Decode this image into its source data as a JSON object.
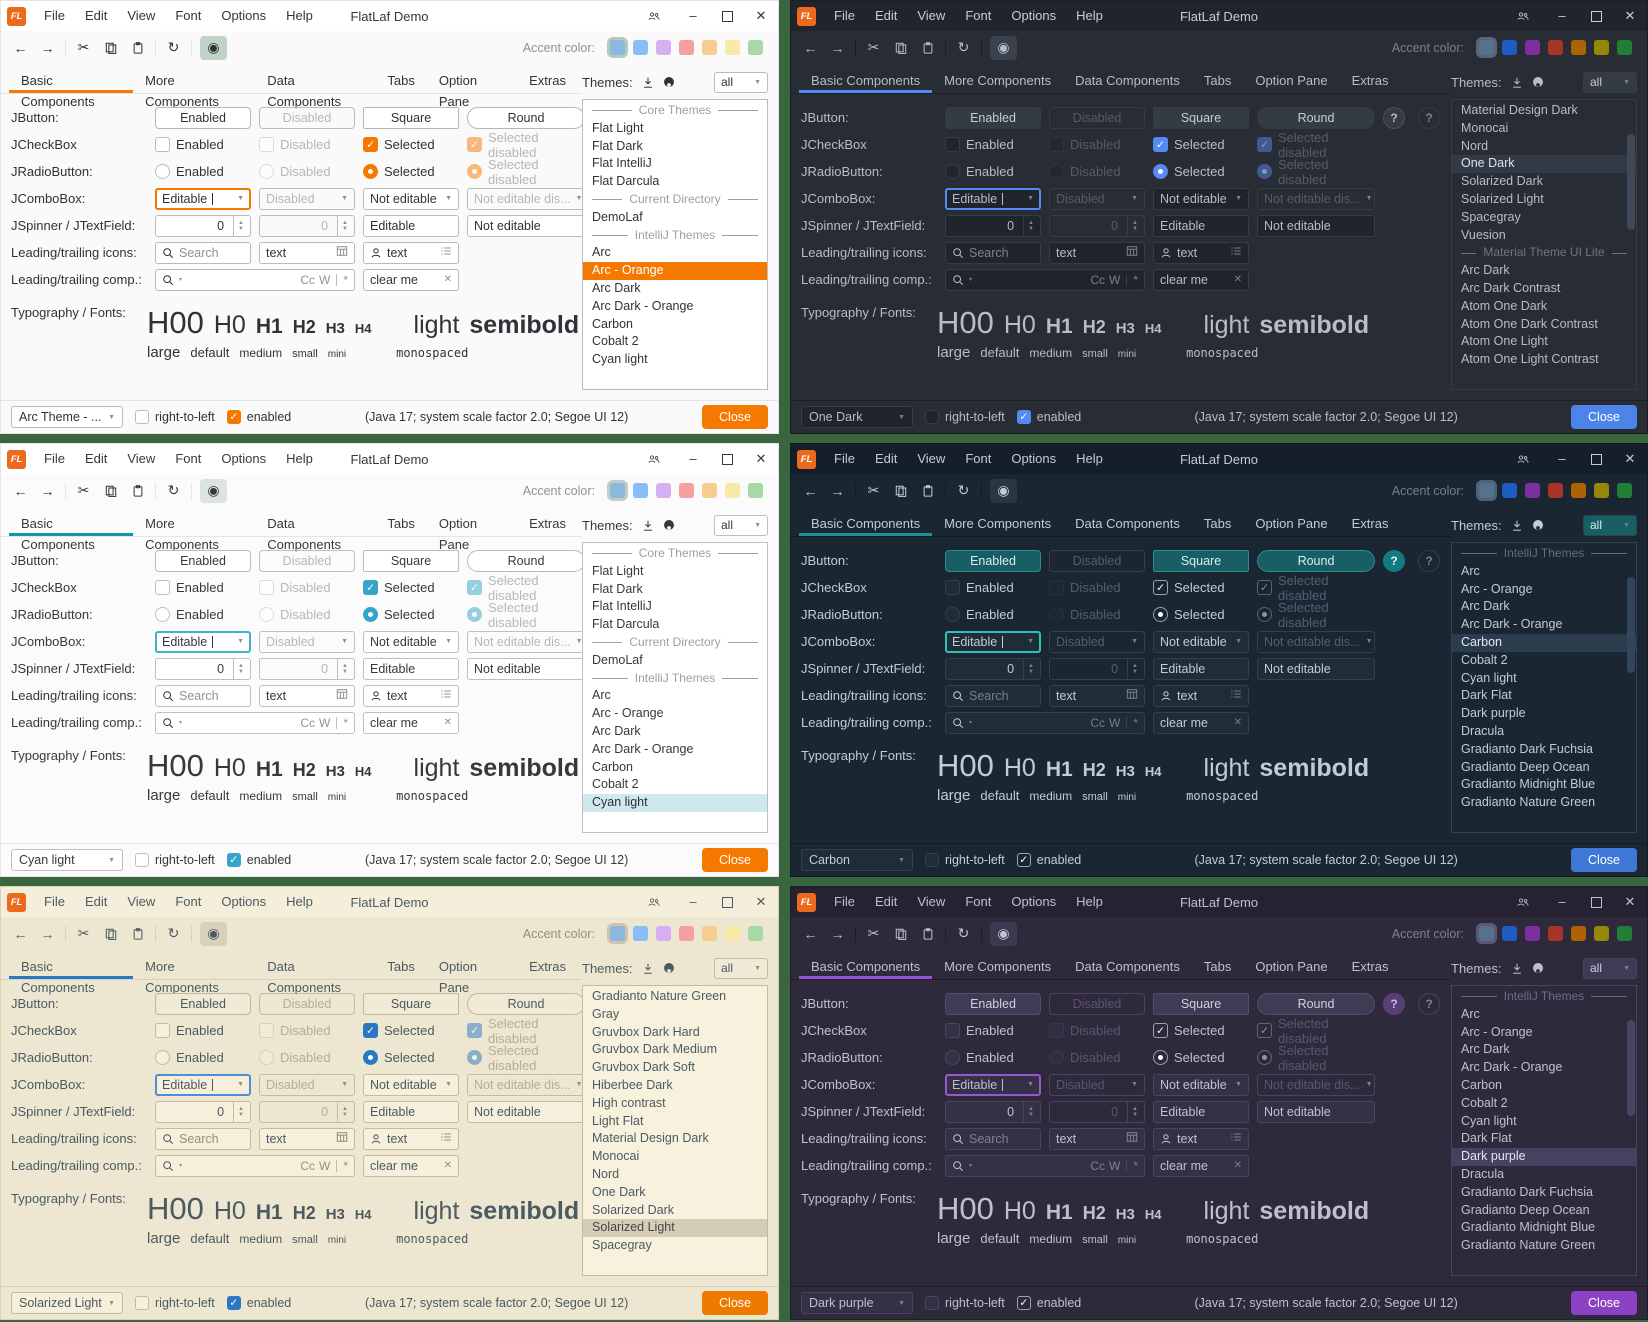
{
  "desktop": {
    "background": "#3a663f"
  },
  "shared": {
    "logo": "FL",
    "title": "FlatLaf Demo",
    "menu": [
      "File",
      "Edit",
      "View",
      "Font",
      "Options",
      "Help"
    ],
    "accent_color_label": "Accent color:",
    "tabs": [
      "Basic Components",
      "More Components",
      "Data Components",
      "Tabs",
      "Option Pane",
      "Extras"
    ],
    "themes_label": "Themes:",
    "filter_value": "all",
    "accent_swatches_light": [
      "#8db8dd",
      "#88bdf7",
      "#d7aef2",
      "#f5a0a0",
      "#f6cd8e",
      "#f7e9a6",
      "#a6d9a6"
    ],
    "accent_swatches_dark": [
      "#54718d",
      "#1d5cc2",
      "#7b2fa0",
      "#a83427",
      "#ad6204",
      "#96870a",
      "#217e35"
    ],
    "icons": {
      "back": "←",
      "forward": "→",
      "cut": "✂",
      "refresh": "↻",
      "eye": "◉",
      "combo_arrow": "▼",
      "spinner_up": "▲",
      "spinner_down": "▼",
      "check": "✓",
      "minimize": "–",
      "close_window": "✕",
      "clear_x": "✕",
      "star": "*",
      "bar_sep": "|",
      "search_drop": "▾"
    },
    "rows": {
      "jbutton": {
        "label": "JButton:",
        "enabled": "Enabled",
        "disabled": "Disabled",
        "square": "Square",
        "round": "Round",
        "help": "?"
      },
      "jcheckbox": {
        "label": "JCheckBox",
        "enabled": "Enabled",
        "disabled": "Disabled",
        "selected": "Selected",
        "selected_disabled": "Selected disabled"
      },
      "jradiobutton": {
        "label": "JRadioButton:",
        "enabled": "Enabled",
        "disabled": "Disabled",
        "selected": "Selected",
        "selected_disabled": "Selected disabled"
      },
      "jcombobox": {
        "label": "JComboBox:",
        "editable": "Editable",
        "disabled": "Disabled",
        "not_editable": "Not editable",
        "not_editable_disabled": "Not editable dis..."
      },
      "jspinner": {
        "label": "JSpinner / JTextField:",
        "value": "0",
        "disabled_value": "0",
        "editable": "Editable",
        "not_editable": "Not editable"
      },
      "leading_icons": {
        "label": "Leading/trailing icons:",
        "search_placeholder": "Search",
        "text1": "text",
        "text2": "text"
      },
      "leading_comps": {
        "label": "Leading/trailing comp.:",
        "cc": "Cc",
        "w": "W",
        "clear": "clear me"
      },
      "typography": {
        "label": "Typography / Fonts:",
        "h00": "H00",
        "h0": "H0",
        "h1": "H1",
        "h2": "H2",
        "h3": "H3",
        "h4": "H4",
        "light": "light",
        "semibold": "semibold",
        "large": "large",
        "default": "default",
        "medium": "medium",
        "small": "small",
        "mini": "mini",
        "monospaced": "monospaced"
      }
    },
    "statusbar": {
      "rtl": "right-to-left",
      "enabled": "enabled",
      "info": "(Java 17;  system scale factor 2.0; Segoe UI 12)",
      "close": "Close"
    }
  },
  "windows": [
    {
      "name": "arc-orange",
      "mode": "light",
      "selector_value": "Arc Theme - ...",
      "theme_list": [
        {
          "type": "sep",
          "label": "Core Themes"
        },
        {
          "label": "Flat Light"
        },
        {
          "label": "Flat Dark"
        },
        {
          "label": "Flat IntelliJ"
        },
        {
          "label": "Flat Darcula"
        },
        {
          "type": "sep",
          "label": "Current Directory"
        },
        {
          "label": "DemoLaf"
        },
        {
          "type": "sep",
          "label": "IntelliJ Themes"
        },
        {
          "label": "Arc"
        },
        {
          "label": "Arc - Orange",
          "selected": true
        },
        {
          "label": "Arc Dark"
        },
        {
          "label": "Arc Dark - Orange"
        },
        {
          "label": "Carbon"
        },
        {
          "label": "Cobalt 2"
        },
        {
          "label": "Cyan light"
        }
      ],
      "colors": {
        "bg": "#fafafa",
        "titlebar": "#ffffff",
        "titleText": "#333639",
        "text": "#2f3337",
        "muted": "#8e9294",
        "disabled": "#b4b7ba",
        "field": "#ffffff",
        "fieldBorder": "#b9bcbe",
        "btn": "#ffffff",
        "btnBorder": "#b4b7ba",
        "btnText": "#2f3337",
        "accent": "#f57900",
        "focus": "#f57900",
        "checkFill": "#f57900",
        "close": "#f57900",
        "listBg": "#ffffff",
        "listSel": "#f57900",
        "listSelText": "#ffffff",
        "toggleBg": "#bfd2c6",
        "swatchSel": "#b5c9bd",
        "divider": "#e2e4e5",
        "sepText": "#9aa0a3",
        "helpBg": "#ffffff",
        "helpFg": "#2c7fd6",
        "helpBorder": "#7eb3e8",
        "scrollThumb": ""
      }
    },
    {
      "name": "one-dark",
      "mode": "dark",
      "selector_value": "One Dark",
      "theme_list": [
        {
          "label": "Material Design Dark"
        },
        {
          "label": "Monocai"
        },
        {
          "label": "Nord"
        },
        {
          "label": "One Dark",
          "selected": true
        },
        {
          "label": "Solarized Dark"
        },
        {
          "label": "Solarized Light"
        },
        {
          "label": "Spacegray"
        },
        {
          "label": "Vuesion"
        },
        {
          "type": "sep",
          "label": "Material Theme UI Lite"
        },
        {
          "label": "Arc Dark"
        },
        {
          "label": "Arc Dark Contrast"
        },
        {
          "label": "Atom One Dark"
        },
        {
          "label": "Atom One Dark Contrast"
        },
        {
          "label": "Atom One Light"
        },
        {
          "label": "Atom One Light Contrast"
        }
      ],
      "colors": {
        "bg": "#282c34",
        "titlebar": "#21252b",
        "titleText": "#c8cdd5",
        "text": "#b6bdc9",
        "muted": "#7a818d",
        "disabled": "#555c68",
        "field": "#20242b",
        "fieldBorder": "#363c46",
        "btn": "#353b45",
        "btnBorder": "#353b45",
        "btnText": "#c8cdd5",
        "accent": "#568af2",
        "focus": "#568af2",
        "checkFill": "#568af2",
        "close": "#4d84ea",
        "listBg": "#282c34",
        "listSel": "#323a46",
        "listSelText": "#dfe3ea",
        "toggleBg": "#3b424e",
        "swatchSel": "#5a6575",
        "divider": "#1b1e23",
        "sepText": "#6f7682",
        "helpBg": "#353b45",
        "helpFg": "#b6bdc9",
        "helpBorder": "#4a515d",
        "scrollThumb": "#3f4857"
      }
    },
    {
      "name": "cyan-light",
      "mode": "light",
      "selector_value": "Cyan light",
      "theme_list": [
        {
          "type": "sep",
          "label": "Core Themes"
        },
        {
          "label": "Flat Light"
        },
        {
          "label": "Flat Dark"
        },
        {
          "label": "Flat IntelliJ"
        },
        {
          "label": "Flat Darcula"
        },
        {
          "type": "sep",
          "label": "Current Directory"
        },
        {
          "label": "DemoLaf"
        },
        {
          "type": "sep",
          "label": "IntelliJ Themes"
        },
        {
          "label": "Arc"
        },
        {
          "label": "Arc - Orange"
        },
        {
          "label": "Arc Dark"
        },
        {
          "label": "Arc Dark - Orange"
        },
        {
          "label": "Carbon"
        },
        {
          "label": "Cobalt 2"
        },
        {
          "label": "Cyan light",
          "selected": true
        }
      ],
      "colors": {
        "bg": "#fbfbfb",
        "titlebar": "#ffffff",
        "titleText": "#36393c",
        "text": "#36393c",
        "muted": "#909396",
        "disabled": "#b6b8ba",
        "field": "#ffffff",
        "fieldBorder": "#bdbfc1",
        "btn": "#ffffff",
        "btnBorder": "#b8babc",
        "btnText": "#36393c",
        "accent": "#0f9aa8",
        "focus": "#3fb3c8",
        "checkFill": "#34a5c8",
        "close": "#f57900",
        "listBg": "#ffffff",
        "listSel": "#cfe9ee",
        "listSelText": "#2c3033",
        "toggleBg": "#dde3e0",
        "swatchSel": "#c3cdc8",
        "divider": "#e4e5e6",
        "sepText": "#9aa0a3",
        "helpBg": "#ffffff",
        "helpFg": "#2c7fd6",
        "helpBorder": "#7eb3e8",
        "scrollThumb": ""
      }
    },
    {
      "name": "carbon",
      "mode": "dark",
      "selector_value": "Carbon",
      "theme_list": [
        {
          "type": "sep",
          "label": "IntelliJ Themes"
        },
        {
          "label": "Arc"
        },
        {
          "label": "Arc - Orange"
        },
        {
          "label": "Arc Dark"
        },
        {
          "label": "Arc Dark - Orange"
        },
        {
          "label": "Carbon",
          "selected": true
        },
        {
          "label": "Cobalt 2"
        },
        {
          "label": "Cyan light"
        },
        {
          "label": "Dark Flat"
        },
        {
          "label": "Dark purple"
        },
        {
          "label": "Dracula"
        },
        {
          "label": "Gradianto Dark Fuchsia"
        },
        {
          "label": "Gradianto Deep Ocean"
        },
        {
          "label": "Gradianto Midnight Blue"
        },
        {
          "label": "Gradianto Nature Green"
        }
      ],
      "colors": {
        "bg": "#1a2631",
        "titlebar": "#151f29",
        "titleText": "#c2ccd4",
        "text": "#c2ccd4",
        "muted": "#71808c",
        "disabled": "#4e6171",
        "field": "#1f2d39",
        "fieldBorder": "#31414e",
        "btn": "#175f64",
        "btnBorder": "#2c8c8e",
        "btnText": "#dcebea",
        "accent": "#19939b",
        "focus": "#2cc0c0",
        "checkFill": "",
        "close": "#3f77d6",
        "listBg": "#1a2631",
        "listSel": "#2b3c4e",
        "listSelText": "#e4ebf1",
        "toggleBg": "#273743",
        "swatchSel": "#4e6474",
        "divider": "#121a22",
        "sepText": "#5d707e",
        "helpBg": "#137a82",
        "helpFg": "#dff3f3",
        "helpBorder": "#137a82",
        "scrollThumb": "#32455a"
      }
    },
    {
      "name": "solarized-light",
      "mode": "light",
      "selector_value": "Solarized Light",
      "theme_list": [
        {
          "label": "Gradianto Nature Green"
        },
        {
          "label": "Gray"
        },
        {
          "label": "Gruvbox Dark Hard"
        },
        {
          "label": "Gruvbox Dark Medium"
        },
        {
          "label": "Gruvbox Dark Soft"
        },
        {
          "label": "Hiberbee Dark"
        },
        {
          "label": "High contrast"
        },
        {
          "label": "Light Flat"
        },
        {
          "label": "Material Design Dark"
        },
        {
          "label": "Monocai"
        },
        {
          "label": "Nord"
        },
        {
          "label": "One Dark"
        },
        {
          "label": "Solarized Dark"
        },
        {
          "label": "Solarized Light",
          "selected": true
        },
        {
          "label": "Spacegray"
        }
      ],
      "colors": {
        "bg": "#ede6d1",
        "titlebar": "#f4eedb",
        "titleText": "#4c5b61",
        "text": "#4c5b61",
        "muted": "#96907a",
        "disabled": "#b5ae93",
        "field": "#f5efdb",
        "fieldBorder": "#c2bb9e",
        "btn": "#f0e9d5",
        "btnBorder": "#bfb89b",
        "btnText": "#4c5b61",
        "accent": "#2b78c2",
        "focus": "#4a90d9",
        "checkFill": "#2b78c2",
        "close": "#ef7a00",
        "listBg": "#f7f1de",
        "listSel": "#d5cdb5",
        "listSelText": "#40474c",
        "toggleBg": "#d8d1b9",
        "swatchSel": "#cdc6ad",
        "divider": "#d8d1ba",
        "sepText": "#9a937c",
        "helpBg": "#f5efdb",
        "helpFg": "#2b78c2",
        "helpBorder": "#8ab2dd",
        "scrollThumb": ""
      }
    },
    {
      "name": "dark-purple",
      "mode": "dark",
      "selector_value": "Dark purple",
      "theme_list": [
        {
          "type": "sep",
          "label": "IntelliJ Themes"
        },
        {
          "label": "Arc"
        },
        {
          "label": "Arc - Orange"
        },
        {
          "label": "Arc Dark"
        },
        {
          "label": "Arc Dark - Orange"
        },
        {
          "label": "Carbon"
        },
        {
          "label": "Cobalt 2"
        },
        {
          "label": "Cyan light"
        },
        {
          "label": "Dark Flat"
        },
        {
          "label": "Dark purple",
          "selected": true
        },
        {
          "label": "Dracula"
        },
        {
          "label": "Gradianto Dark Fuchsia"
        },
        {
          "label": "Gradianto Deep Ocean"
        },
        {
          "label": "Gradianto Midnight Blue"
        },
        {
          "label": "Gradianto Nature Green"
        }
      ],
      "colors": {
        "bg": "#2f2a3b",
        "titlebar": "#262231",
        "titleText": "#c3bdd1",
        "text": "#c3bdd1",
        "muted": "#837c96",
        "disabled": "#5c5470",
        "field": "#363046",
        "fieldBorder": "#4b4360",
        "btn": "#413a54",
        "btnBorder": "#554d6b",
        "btnText": "#d4cfdf",
        "accent": "#9b4fd6",
        "focus": "#9757d1",
        "checkFill": "",
        "close": "#8c42c4",
        "listBg": "#2f2a3b",
        "listSel": "#474060",
        "listSelText": "#e8e4f0",
        "toggleBg": "#3d3750",
        "swatchSel": "#5c5574",
        "divider": "#201c2b",
        "sepText": "#6f688a",
        "helpBg": "#5a3f75",
        "helpFg": "#cdb8e8",
        "helpBorder": "#5a3f75",
        "scrollThumb": "#4a4361"
      }
    }
  ]
}
